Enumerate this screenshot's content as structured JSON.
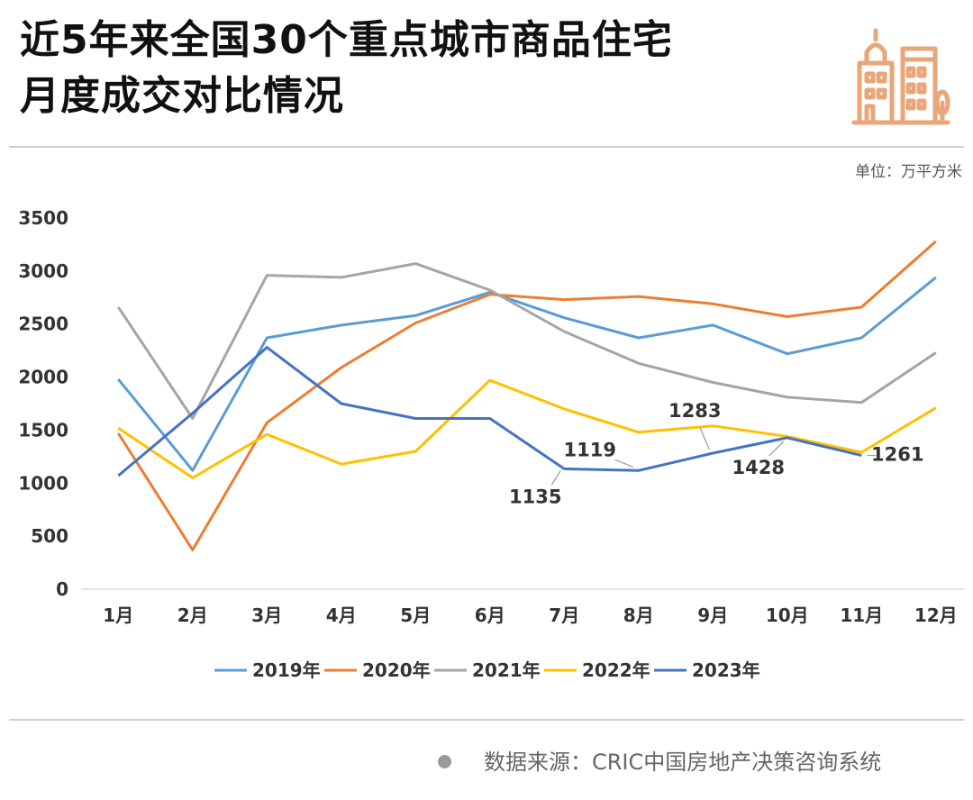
{
  "header": {
    "title_line1": "近5年来全国30个重点城市商品住宅",
    "title_line2": "月度成交对比情况",
    "logo_icon": "city-buildings-icon",
    "logo_color": "#E8A679"
  },
  "unit_label": "单位：万平方米",
  "source_text": "数据来源：CRIC中国房地产决策咨询系统",
  "chart_data": {
    "type": "line",
    "title": "近5年来全国30个重点城市商品住宅月度成交对比情况",
    "x": [
      "1月",
      "2月",
      "3月",
      "4月",
      "5月",
      "6月",
      "7月",
      "8月",
      "9月",
      "10月",
      "11月",
      "12月"
    ],
    "yticks": [
      0,
      500,
      1000,
      1500,
      2000,
      2500,
      3000,
      3500
    ],
    "ylim": [
      0,
      3500
    ],
    "grid": false,
    "legend": "bottom",
    "series": [
      {
        "name": "2019年",
        "color": "#5B9BD5",
        "values": [
          1980,
          1120,
          2370,
          2490,
          2580,
          2800,
          2560,
          2370,
          2490,
          2220,
          2370,
          2940
        ]
      },
      {
        "name": "2020年",
        "color": "#ED7D31",
        "values": [
          1470,
          370,
          1570,
          2090,
          2510,
          2780,
          2730,
          2760,
          2690,
          2570,
          2660,
          3280
        ]
      },
      {
        "name": "2021年",
        "color": "#A5A5A5",
        "values": [
          2660,
          1610,
          2960,
          2940,
          3070,
          2820,
          2430,
          2130,
          1950,
          1810,
          1760,
          2230
        ]
      },
      {
        "name": "2022年",
        "color": "#FFC000",
        "values": [
          1520,
          1050,
          1460,
          1180,
          1300,
          1970,
          1700,
          1480,
          1540,
          1440,
          1290,
          1710
        ]
      },
      {
        "name": "2023年",
        "color": "#4472C4",
        "values": [
          1070,
          1660,
          2280,
          1750,
          1610,
          1610,
          1135,
          1119,
          1283,
          1428,
          1261,
          null
        ]
      }
    ],
    "annotations": [
      {
        "label": "1135",
        "series": "2023年",
        "x": "7月"
      },
      {
        "label": "1119",
        "series": "2023年",
        "x": "8月"
      },
      {
        "label": "1283",
        "series": "2023年",
        "x": "9月"
      },
      {
        "label": "1428",
        "series": "2023年",
        "x": "10月"
      },
      {
        "label": "1261",
        "series": "2023年",
        "x": "11月"
      }
    ]
  }
}
